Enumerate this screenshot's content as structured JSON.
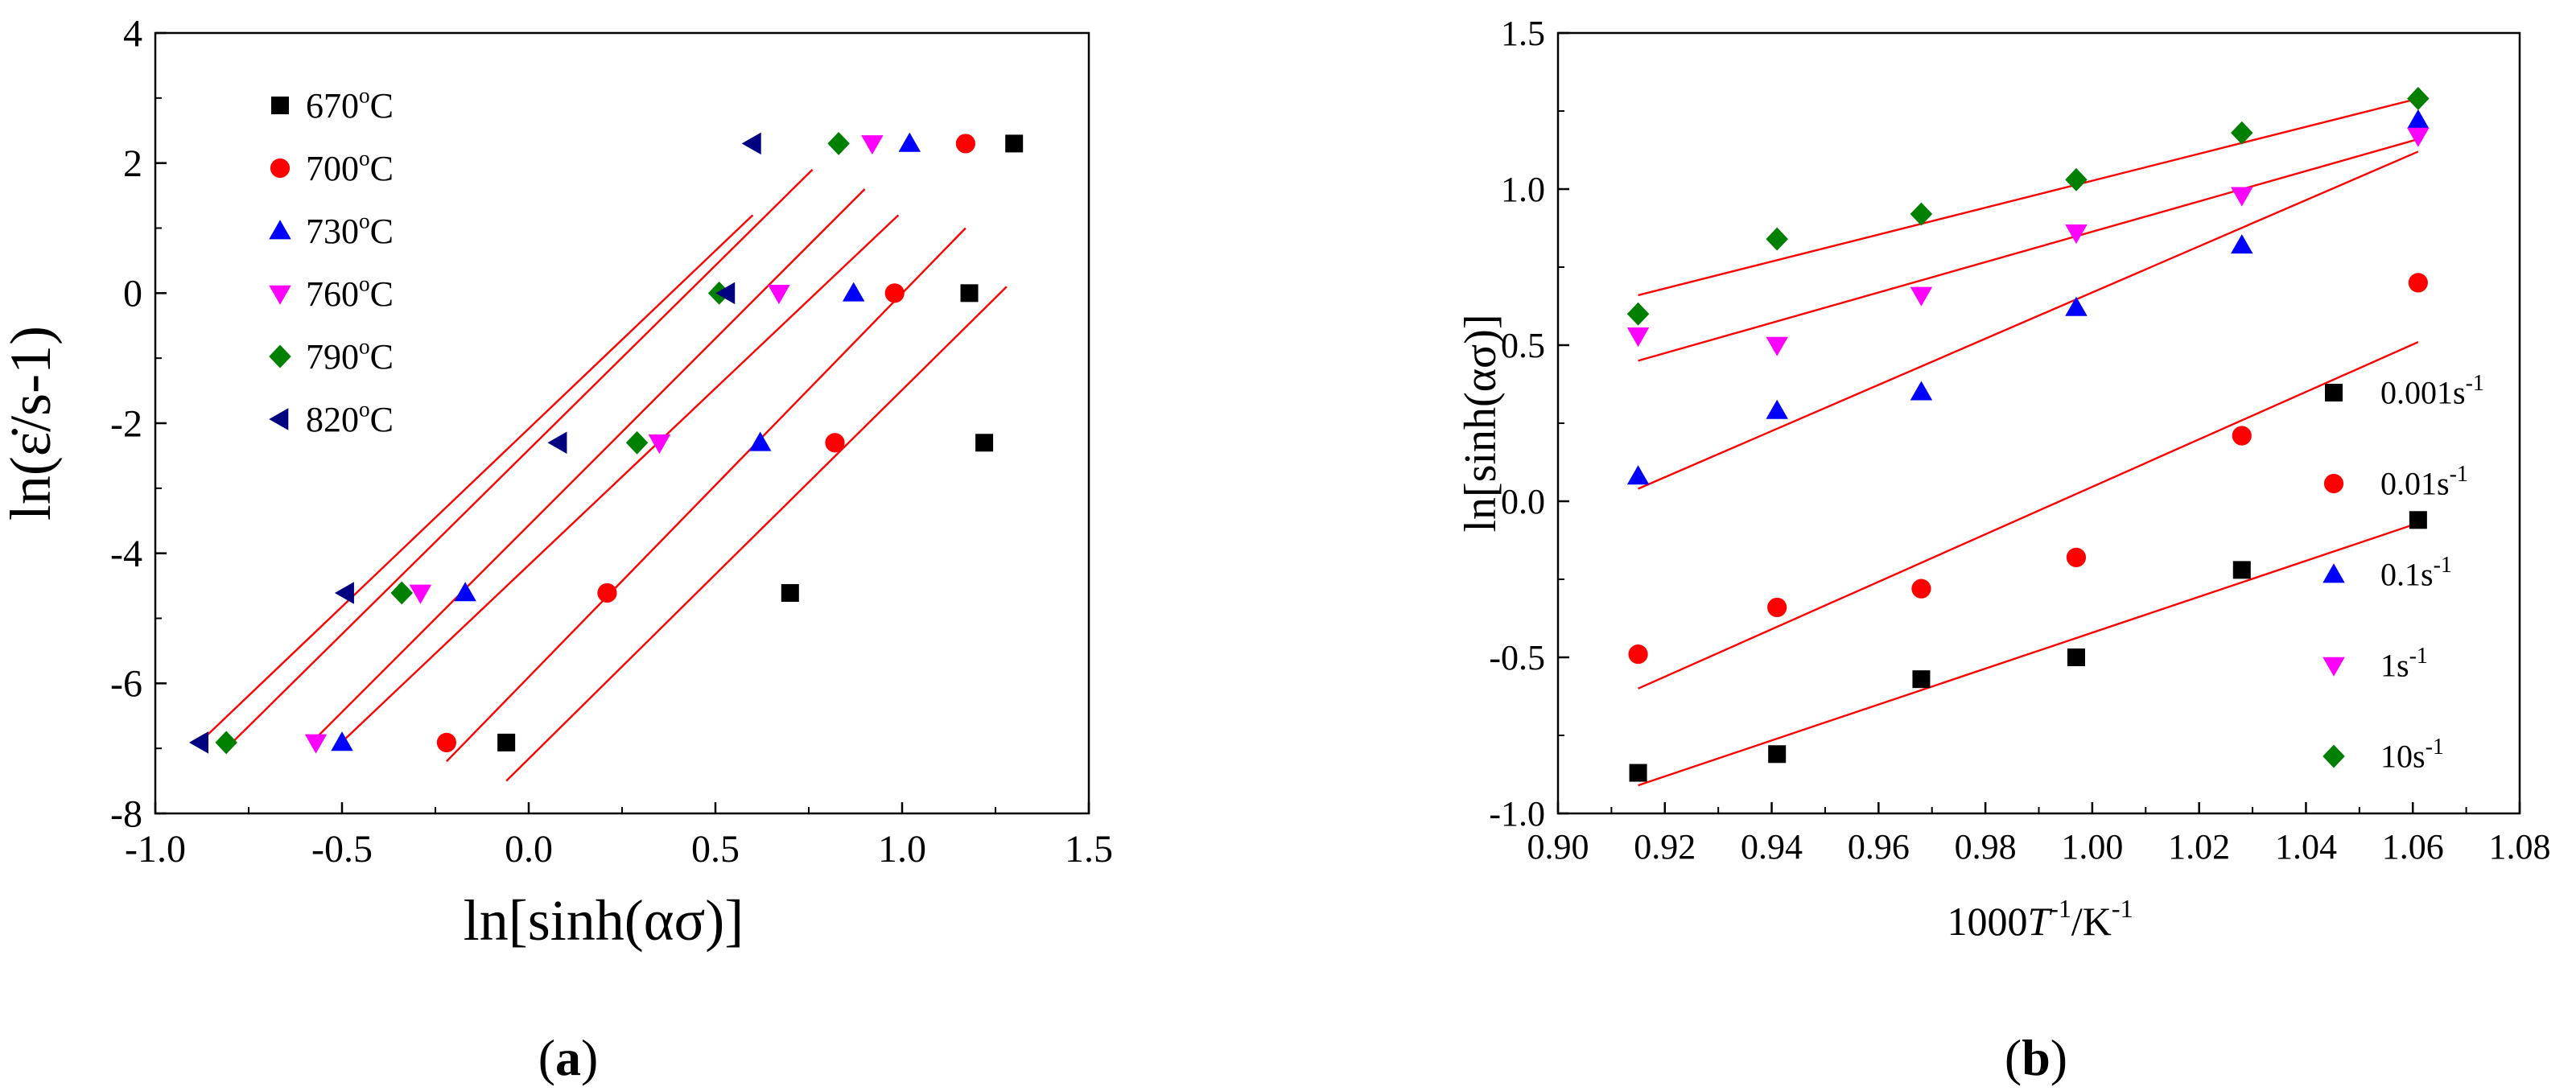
{
  "chart_data": [
    {
      "id": "a",
      "type": "scatter",
      "caption": "a",
      "xlabel": "ln[sinh(ασ)]",
      "ylabel": "ln(ε̇/s-1)",
      "xlim": [
        -1.0,
        1.5
      ],
      "ylim": [
        -8,
        4
      ],
      "xticks": [
        -1.0,
        -0.5,
        0.0,
        0.5,
        1.0,
        1.5
      ],
      "xtick_labels": [
        "-1.0",
        "-0.5",
        "0.0",
        "0.5",
        "1.0",
        "1.5"
      ],
      "yticks": [
        -8,
        -6,
        -4,
        -2,
        0,
        2,
        4
      ],
      "ytick_labels": [
        "-8",
        "-6",
        "-4",
        "-2",
        "0",
        "2",
        "4"
      ],
      "legend_position": "top-left",
      "series": [
        {
          "name": "670",
          "unit": "oC",
          "color": "#000000",
          "marker": "square",
          "x": [
            -0.06,
            0.7,
            1.22,
            1.18,
            1.3
          ],
          "y": [
            -6.91,
            -4.61,
            -2.3,
            0.0,
            2.3
          ],
          "fit": {
            "x": [
              -0.06,
              1.28
            ],
            "y": [
              -7.5,
              0.1
            ]
          }
        },
        {
          "name": "700",
          "unit": "oC",
          "color": "#ff0000",
          "marker": "circle",
          "x": [
            -0.22,
            0.21,
            0.82,
            0.98,
            1.17
          ],
          "y": [
            -6.91,
            -4.61,
            -2.3,
            0.0,
            2.3
          ],
          "fit": {
            "x": [
              -0.22,
              1.17
            ],
            "y": [
              -7.2,
              1.0
            ]
          }
        },
        {
          "name": "730",
          "unit": "oC",
          "color": "#0000ff",
          "marker": "triangle-up",
          "x": [
            -0.5,
            -0.17,
            0.62,
            0.87,
            1.02
          ],
          "y": [
            -6.91,
            -4.61,
            -2.3,
            0.0,
            2.3
          ],
          "fit": {
            "x": [
              -0.5,
              0.99
            ],
            "y": [
              -6.9,
              1.2
            ]
          }
        },
        {
          "name": "760",
          "unit": "oC",
          "color": "#ff00ff",
          "marker": "triangle-down",
          "x": [
            -0.57,
            -0.29,
            0.35,
            0.67,
            0.92
          ],
          "y": [
            -6.91,
            -4.61,
            -2.3,
            0.0,
            2.3
          ],
          "fit": {
            "x": [
              -0.58,
              0.9
            ],
            "y": [
              -6.9,
              1.6
            ]
          }
        },
        {
          "name": "790",
          "unit": "oC",
          "color": "#008000",
          "marker": "diamond",
          "x": [
            -0.81,
            -0.34,
            0.29,
            0.51,
            0.83
          ],
          "y": [
            -6.91,
            -4.61,
            -2.3,
            0.0,
            2.3
          ],
          "fit": {
            "x": [
              -0.81,
              0.76
            ],
            "y": [
              -7.0,
              1.9
            ]
          }
        },
        {
          "name": "820",
          "unit": "oC",
          "color": "#000080",
          "marker": "triangle-left",
          "x": [
            -0.88,
            -0.49,
            0.08,
            0.53,
            0.6
          ],
          "y": [
            -6.91,
            -4.61,
            -2.3,
            0.0,
            2.3
          ],
          "fit": {
            "x": [
              -0.88,
              0.6
            ],
            "y": [
              -6.9,
              1.2
            ]
          }
        }
      ]
    },
    {
      "id": "b",
      "type": "scatter",
      "caption": "b",
      "xlabel_main": "1000",
      "xlabel_var": "T",
      "xlabel_sup1": "-1",
      "xlabel_unit": "/K",
      "xlabel_sup2": "-1",
      "ylabel": "ln[sinh(ασ)]",
      "xlim": [
        0.9,
        1.08
      ],
      "ylim": [
        -1.0,
        1.5
      ],
      "xticks": [
        0.9,
        0.92,
        0.94,
        0.96,
        0.98,
        1.0,
        1.02,
        1.04,
        1.06,
        1.08
      ],
      "xtick_labels": [
        "0.90",
        "0.92",
        "0.94",
        "0.96",
        "0.98",
        "1.00",
        "1.02",
        "1.04",
        "1.06",
        "1.08"
      ],
      "yticks": [
        -1.0,
        -0.5,
        0.0,
        0.5,
        1.0,
        1.5
      ],
      "ytick_labels": [
        "-1.0",
        "-0.5",
        "0.0",
        "0.5",
        "1.0",
        "1.5"
      ],
      "legend_position": "bottom-right",
      "series": [
        {
          "name": "0.001s",
          "sup": "-1",
          "color": "#000000",
          "marker": "square",
          "x": [
            0.915,
            0.941,
            0.968,
            0.997,
            1.028,
            1.061
          ],
          "y": [
            -0.87,
            -0.81,
            -0.57,
            -0.5,
            -0.22,
            -0.06
          ],
          "fit": {
            "x": [
              0.915,
              1.061
            ],
            "y": [
              -0.91,
              -0.07
            ]
          }
        },
        {
          "name": "0.01s",
          "sup": "-1",
          "color": "#ff0000",
          "marker": "circle",
          "x": [
            0.915,
            0.941,
            0.968,
            0.997,
            1.028,
            1.061
          ],
          "y": [
            -0.49,
            -0.34,
            -0.28,
            -0.18,
            0.21,
            0.7
          ],
          "fit": {
            "x": [
              0.915,
              1.061
            ],
            "y": [
              -0.6,
              0.51
            ]
          }
        },
        {
          "name": "0.1s",
          "sup": "-1",
          "color": "#0000ff",
          "marker": "triangle-up",
          "x": [
            0.915,
            0.941,
            0.968,
            0.997,
            1.028,
            1.061
          ],
          "y": [
            0.08,
            0.29,
            0.35,
            0.62,
            0.82,
            1.22
          ],
          "fit": {
            "x": [
              0.915,
              1.061
            ],
            "y": [
              0.04,
              1.12
            ]
          }
        },
        {
          "name": "1s",
          "sup": "-1",
          "color": "#ff00ff",
          "marker": "triangle-down",
          "x": [
            0.915,
            0.941,
            0.968,
            0.997,
            1.028,
            1.061
          ],
          "y": [
            0.53,
            0.5,
            0.66,
            0.86,
            0.98,
            1.17
          ],
          "fit": {
            "x": [
              0.915,
              1.061
            ],
            "y": [
              0.45,
              1.16
            ]
          }
        },
        {
          "name": "10s",
          "sup": "-1",
          "color": "#008000",
          "marker": "diamond",
          "x": [
            0.915,
            0.941,
            0.968,
            0.997,
            1.028,
            1.061
          ],
          "y": [
            0.6,
            0.84,
            0.92,
            1.03,
            1.18,
            1.29
          ],
          "fit": {
            "x": [
              0.915,
              1.061
            ],
            "y": [
              0.66,
              1.29
            ]
          }
        }
      ]
    }
  ]
}
